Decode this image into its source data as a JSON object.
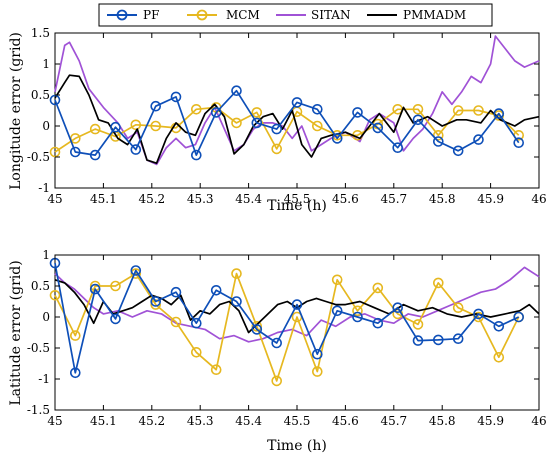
{
  "legend": {
    "entries": [
      {
        "name": "PF",
        "color": "#0e4fb8",
        "marker": "circle"
      },
      {
        "name": "MCM",
        "color": "#e6b820",
        "marker": "circle"
      },
      {
        "name": "SITAN",
        "color": "#a052d6",
        "marker": "none"
      },
      {
        "name": "PMMADM",
        "color": "#000000",
        "marker": "none"
      }
    ]
  },
  "chart_data": [
    {
      "type": "line",
      "xlabel": "Time (h)",
      "ylabel": "Longitude error (grid)",
      "xlim": [
        45,
        46
      ],
      "ylim": [
        -1,
        1.5
      ],
      "xticks": [
        "45",
        "45.1",
        "45.2",
        "45.3",
        "45.4",
        "45.5",
        "45.6",
        "45.7",
        "45.8",
        "45.9",
        "46"
      ],
      "yticks": [
        "-1",
        "-0.5",
        "0",
        "0.5",
        "1",
        "1.5"
      ],
      "grid": false,
      "series": [
        {
          "name": "PF",
          "x": [
            45.0,
            45.042,
            45.083,
            45.125,
            45.167,
            45.208,
            45.25,
            45.292,
            45.333,
            45.375,
            45.417,
            45.458,
            45.5,
            45.542,
            45.583,
            45.625,
            45.667,
            45.708,
            45.75,
            45.792,
            45.833,
            45.875,
            45.917,
            45.958
          ],
          "y": [
            0.42,
            -0.42,
            -0.47,
            -0.02,
            -0.38,
            0.32,
            0.47,
            -0.47,
            0.22,
            0.57,
            0.05,
            -0.05,
            0.38,
            0.27,
            -0.2,
            0.22,
            -0.03,
            -0.35,
            0.1,
            -0.25,
            -0.4,
            -0.22,
            0.2,
            -0.27
          ]
        },
        {
          "name": "MCM",
          "x": [
            45.0,
            45.042,
            45.083,
            45.125,
            45.167,
            45.208,
            45.25,
            45.292,
            45.333,
            45.375,
            45.417,
            45.458,
            45.5,
            45.542,
            45.583,
            45.625,
            45.667,
            45.708,
            45.75,
            45.792,
            45.833,
            45.875,
            45.917,
            45.958
          ],
          "y": [
            -0.42,
            -0.2,
            -0.05,
            -0.17,
            0.02,
            0.0,
            -0.03,
            0.27,
            0.3,
            0.05,
            0.22,
            -0.37,
            0.23,
            0.0,
            -0.15,
            -0.15,
            0.03,
            0.27,
            0.27,
            -0.15,
            0.25,
            0.25,
            0.17,
            -0.15
          ]
        },
        {
          "name": "SITAN",
          "x": [
            45.0,
            45.02,
            45.03,
            45.05,
            45.07,
            45.1,
            45.13,
            45.15,
            45.17,
            45.19,
            45.21,
            45.23,
            45.25,
            45.27,
            45.29,
            45.31,
            45.33,
            45.35,
            45.37,
            45.39,
            45.41,
            45.43,
            45.45,
            45.47,
            45.49,
            45.51,
            45.53,
            45.55,
            45.57,
            45.6,
            45.63,
            45.65,
            45.67,
            45.7,
            45.72,
            45.74,
            45.76,
            45.78,
            45.8,
            45.82,
            45.84,
            45.86,
            45.88,
            45.9,
            45.91,
            45.93,
            45.95,
            45.97,
            46.0
          ],
          "y": [
            0.55,
            1.3,
            1.35,
            1.05,
            0.6,
            0.3,
            0.05,
            -0.2,
            -0.1,
            -0.55,
            -0.62,
            -0.35,
            -0.2,
            -0.35,
            -0.3,
            0.05,
            0.3,
            -0.05,
            -0.4,
            -0.3,
            -0.05,
            0.05,
            0.05,
            0.0,
            -0.2,
            0.0,
            -0.4,
            -0.3,
            -0.2,
            -0.1,
            -0.25,
            0.1,
            0.2,
            0.05,
            -0.4,
            -0.2,
            -0.05,
            0.2,
            0.55,
            0.35,
            0.55,
            0.8,
            0.7,
            1.0,
            1.45,
            1.25,
            1.05,
            0.95,
            1.05
          ]
        },
        {
          "name": "PMMADM",
          "x": [
            45.0,
            45.02,
            45.03,
            45.05,
            45.07,
            45.09,
            45.11,
            45.13,
            45.15,
            45.17,
            45.19,
            45.21,
            45.23,
            45.25,
            45.27,
            45.29,
            45.31,
            45.33,
            45.35,
            45.37,
            45.39,
            45.41,
            45.43,
            45.45,
            45.47,
            45.49,
            45.51,
            45.53,
            45.55,
            45.57,
            45.6,
            45.63,
            45.65,
            45.67,
            45.7,
            45.72,
            45.74,
            45.77,
            45.8,
            45.83,
            45.85,
            45.88,
            45.9,
            45.92,
            45.95,
            45.97,
            46.0
          ],
          "y": [
            0.45,
            0.7,
            0.82,
            0.8,
            0.5,
            0.1,
            0.05,
            -0.2,
            -0.3,
            -0.05,
            -0.55,
            -0.6,
            -0.2,
            0.05,
            -0.1,
            -0.15,
            0.2,
            0.35,
            0.15,
            -0.45,
            -0.3,
            0.0,
            0.15,
            0.2,
            -0.05,
            0.25,
            -0.3,
            -0.5,
            -0.2,
            -0.15,
            -0.1,
            -0.2,
            0.0,
            0.2,
            -0.1,
            0.3,
            0.05,
            0.15,
            0.0,
            0.1,
            0.1,
            0.05,
            0.25,
            0.1,
            0.0,
            0.1,
            0.15
          ]
        }
      ]
    },
    {
      "type": "line",
      "xlabel": "Time (h)",
      "ylabel": "Latitude error (grid)",
      "xlim": [
        45,
        46
      ],
      "ylim": [
        -1.5,
        1
      ],
      "xticks": [
        "45",
        "45.1",
        "45.2",
        "45.3",
        "45.4",
        "45.5",
        "45.6",
        "45.7",
        "45.8",
        "45.9",
        "46"
      ],
      "yticks": [
        "-1.5",
        "-1",
        "-0.5",
        "0",
        "0.5",
        "1"
      ],
      "grid": false,
      "series": [
        {
          "name": "PF",
          "x": [
            45.0,
            45.042,
            45.083,
            45.125,
            45.167,
            45.208,
            45.25,
            45.292,
            45.333,
            45.375,
            45.417,
            45.458,
            45.5,
            45.542,
            45.583,
            45.625,
            45.667,
            45.708,
            45.75,
            45.792,
            45.833,
            45.875,
            45.917,
            45.958
          ],
          "y": [
            0.87,
            -0.9,
            0.45,
            -0.03,
            0.75,
            0.25,
            0.4,
            -0.1,
            0.43,
            0.25,
            -0.2,
            -0.42,
            0.2,
            -0.6,
            0.1,
            0.0,
            -0.1,
            0.15,
            -0.38,
            -0.37,
            -0.35,
            0.05,
            -0.15,
            0.0
          ]
        },
        {
          "name": "MCM",
          "x": [
            45.0,
            45.042,
            45.083,
            45.125,
            45.167,
            45.208,
            45.25,
            45.292,
            45.333,
            45.375,
            45.417,
            45.458,
            45.5,
            45.542,
            45.583,
            45.625,
            45.667,
            45.708,
            45.75,
            45.792,
            45.833,
            45.875,
            45.917,
            45.958
          ],
          "y": [
            0.35,
            -0.3,
            0.5,
            0.5,
            0.7,
            0.2,
            -0.08,
            -0.57,
            -0.85,
            0.7,
            -0.15,
            -1.03,
            0.0,
            -0.88,
            0.6,
            0.1,
            0.47,
            0.05,
            -0.12,
            0.55,
            0.15,
            0.0,
            -0.65,
            0.0
          ]
        },
        {
          "name": "SITAN",
          "x": [
            45.0,
            45.02,
            45.04,
            45.06,
            45.08,
            45.1,
            45.13,
            45.16,
            45.19,
            45.22,
            45.25,
            45.28,
            45.31,
            45.34,
            45.37,
            45.4,
            45.43,
            45.46,
            45.49,
            45.52,
            45.55,
            45.58,
            45.61,
            45.64,
            45.67,
            45.7,
            45.73,
            45.76,
            45.79,
            45.82,
            45.85,
            45.88,
            45.91,
            45.94,
            45.97,
            46.0
          ],
          "y": [
            0.7,
            0.55,
            0.45,
            0.3,
            0.15,
            0.05,
            0.1,
            0.0,
            0.1,
            0.05,
            -0.1,
            -0.15,
            -0.2,
            -0.35,
            -0.3,
            -0.4,
            -0.35,
            -0.25,
            -0.2,
            -0.3,
            -0.05,
            -0.15,
            0.0,
            0.05,
            -0.05,
            -0.1,
            0.05,
            0.0,
            0.1,
            0.2,
            0.3,
            0.4,
            0.45,
            0.6,
            0.8,
            0.65
          ]
        },
        {
          "name": "PMMADM",
          "x": [
            45.0,
            45.02,
            45.04,
            45.06,
            45.08,
            45.1,
            45.12,
            45.14,
            45.16,
            45.18,
            45.2,
            45.22,
            45.24,
            45.26,
            45.28,
            45.3,
            45.32,
            45.34,
            45.36,
            45.38,
            45.4,
            45.42,
            45.44,
            45.46,
            45.48,
            45.5,
            45.52,
            45.54,
            45.56,
            45.58,
            45.6,
            45.63,
            45.66,
            45.69,
            45.72,
            45.75,
            45.78,
            45.81,
            45.84,
            45.87,
            45.9,
            45.93,
            45.96,
            45.98,
            46.0
          ],
          "y": [
            0.6,
            0.55,
            0.4,
            0.2,
            -0.1,
            0.25,
            0.05,
            0.1,
            0.15,
            0.25,
            0.35,
            0.3,
            0.2,
            0.35,
            -0.05,
            0.1,
            0.05,
            0.2,
            0.25,
            0.1,
            -0.25,
            -0.1,
            0.05,
            0.2,
            0.25,
            0.15,
            0.25,
            0.3,
            0.25,
            0.2,
            0.2,
            0.25,
            0.15,
            0.05,
            0.2,
            0.1,
            0.15,
            0.05,
            0.0,
            0.05,
            0.0,
            0.05,
            0.1,
            0.2,
            0.05
          ]
        }
      ]
    }
  ]
}
